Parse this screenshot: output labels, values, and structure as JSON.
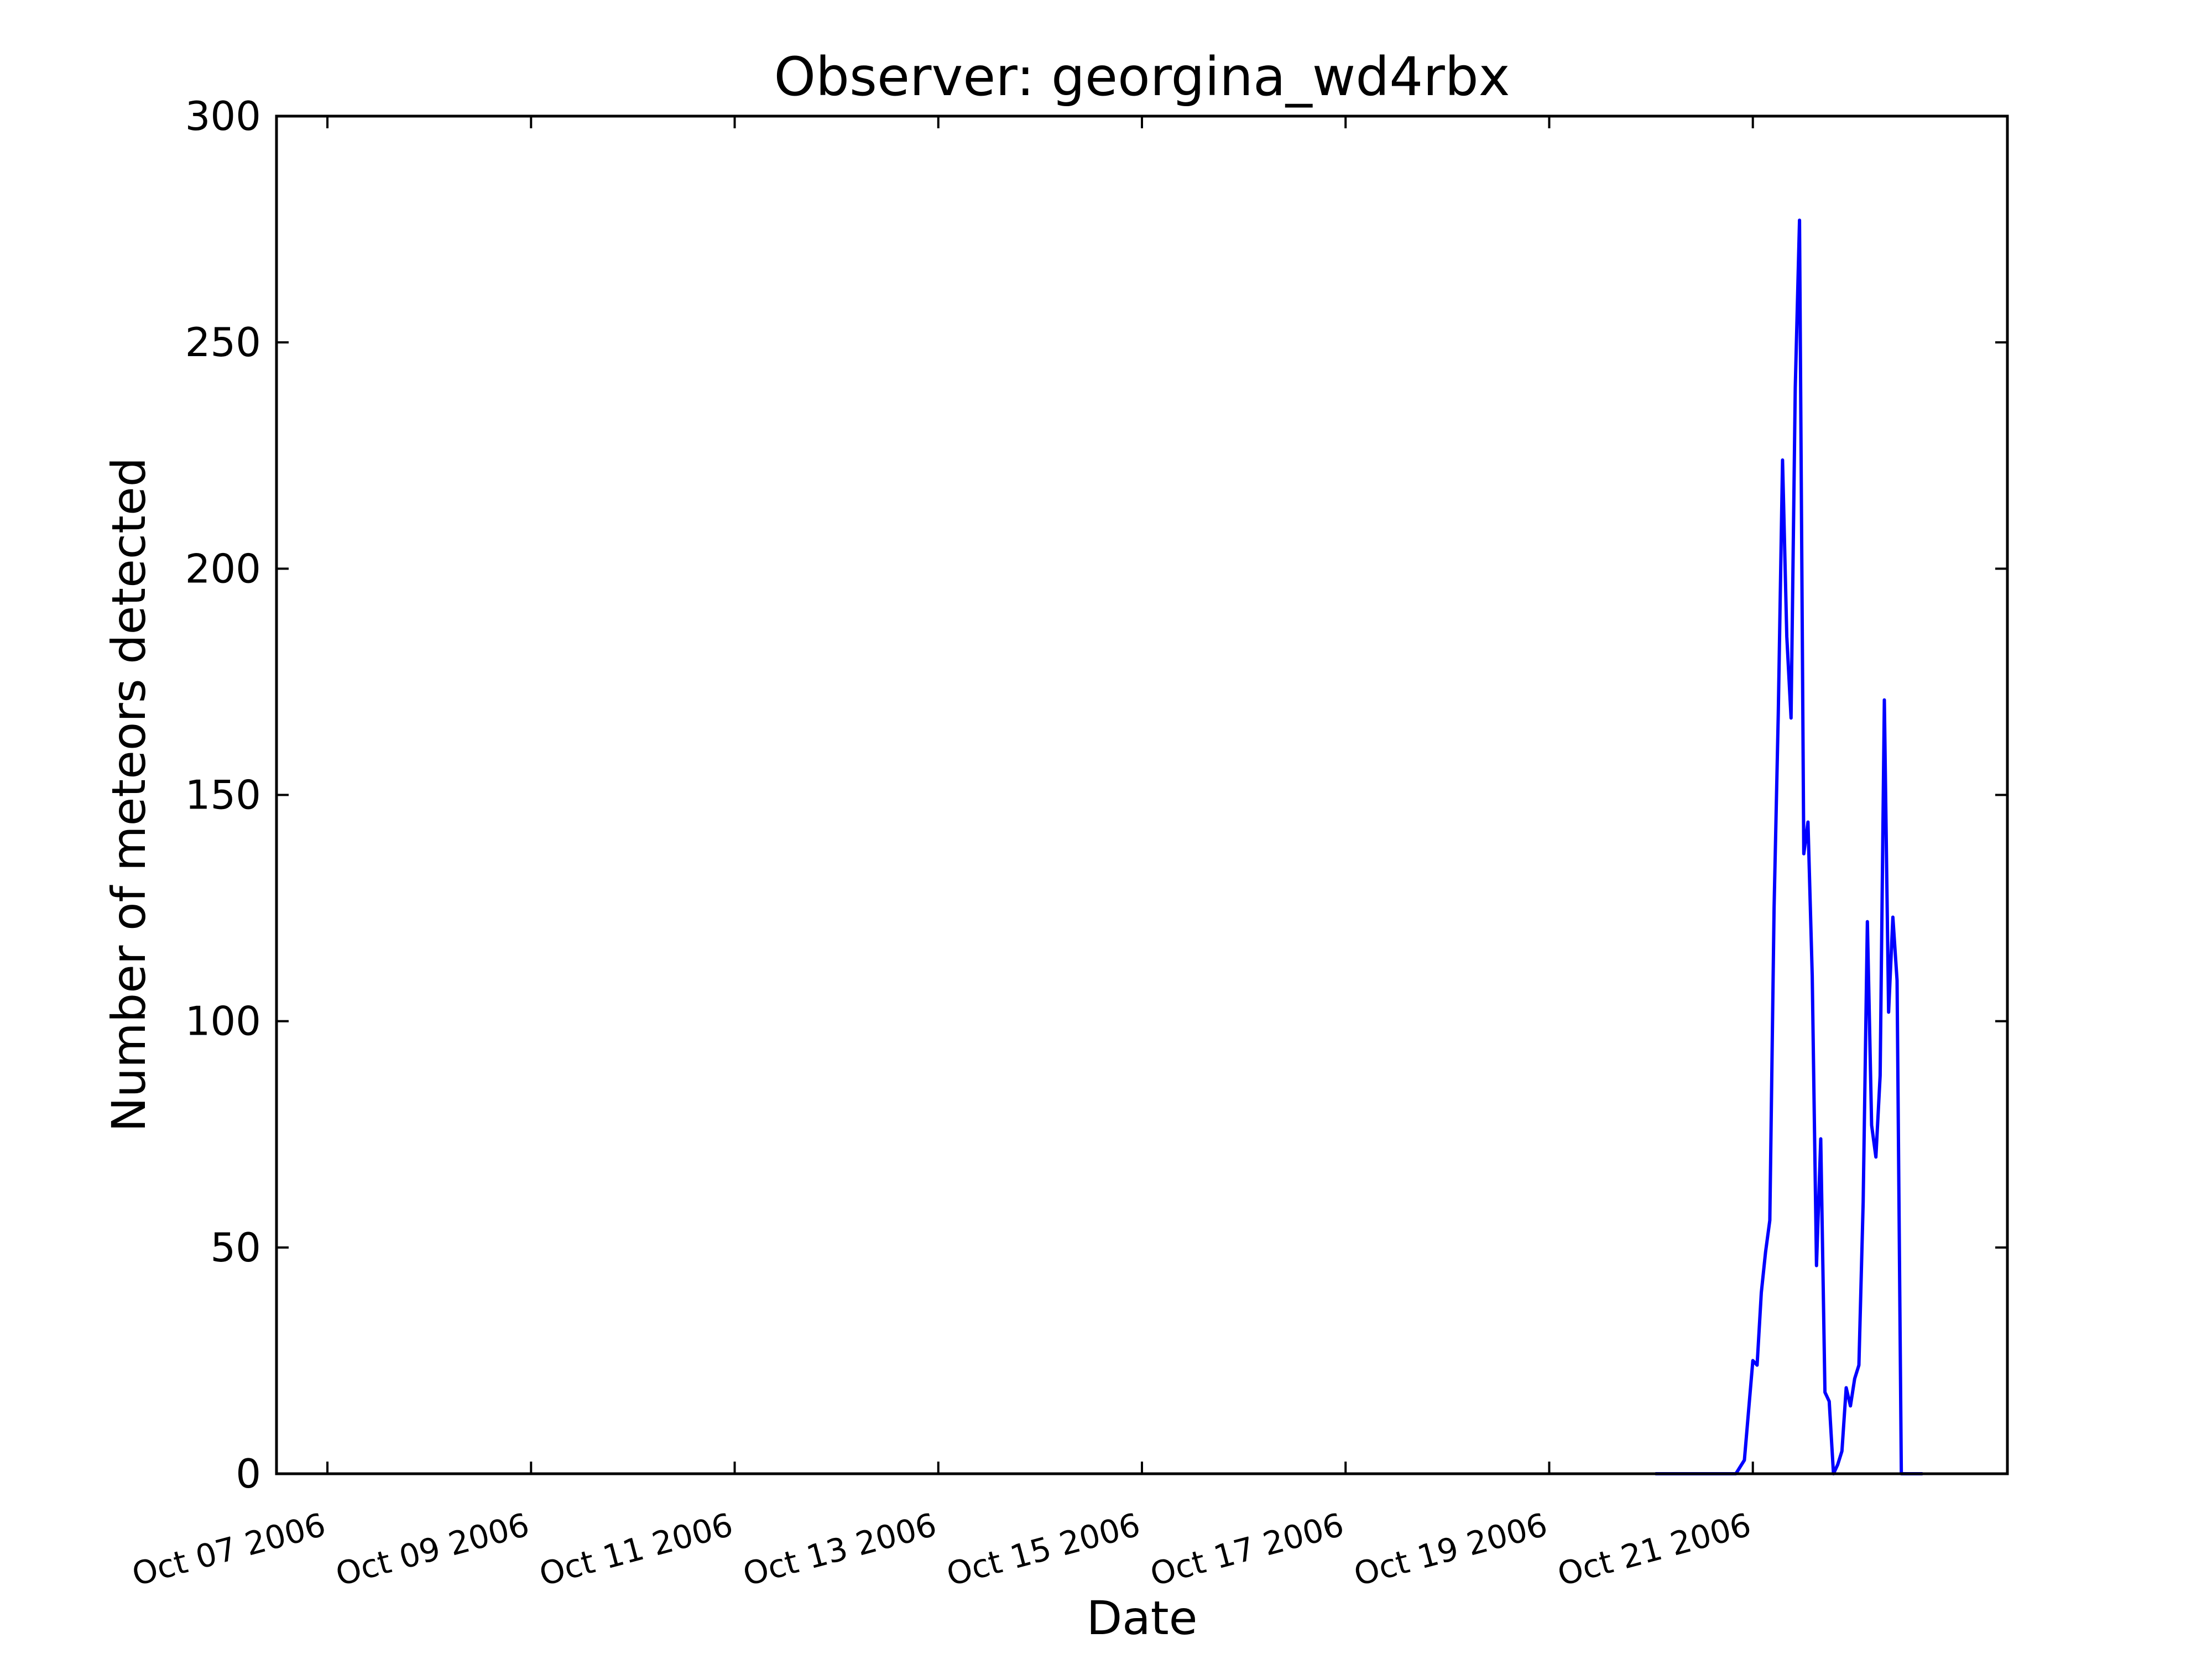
{
  "chart_data": {
    "type": "line",
    "title": "Observer: georgina_wd4rbx",
    "xlabel": "Date",
    "ylabel": "Number of meteors detected",
    "xlim": [
      "2006-10-06T12:00",
      "2006-10-23T12:00"
    ],
    "ylim": [
      0,
      300
    ],
    "yticks": [
      0,
      50,
      100,
      150,
      200,
      250,
      300
    ],
    "xticks": [
      {
        "date": "2006-10-07",
        "label": "Oct 07 2006"
      },
      {
        "date": "2006-10-09",
        "label": "Oct 09 2006"
      },
      {
        "date": "2006-10-11",
        "label": "Oct 11 2006"
      },
      {
        "date": "2006-10-13",
        "label": "Oct 13 2006"
      },
      {
        "date": "2006-10-15",
        "label": "Oct 15 2006"
      },
      {
        "date": "2006-10-17",
        "label": "Oct 17 2006"
      },
      {
        "date": "2006-10-19",
        "label": "Oct 19 2006"
      },
      {
        "date": "2006-10-21",
        "label": "Oct 21 2006"
      }
    ],
    "grid": false,
    "legend": "none",
    "series": [
      {
        "color": "#0000ff",
        "x": [
          "2006-10-20T01:00",
          "2006-10-20T12:00",
          "2006-10-20T20:00",
          "2006-10-20T22:00",
          "2006-10-21T00:00",
          "2006-10-21T01:00",
          "2006-10-21T02:00",
          "2006-10-21T03:00",
          "2006-10-21T04:00",
          "2006-10-21T05:00",
          "2006-10-21T06:00",
          "2006-10-21T07:00",
          "2006-10-21T08:00",
          "2006-10-21T09:00",
          "2006-10-21T10:00",
          "2006-10-21T11:00",
          "2006-10-21T12:00",
          "2006-10-21T13:00",
          "2006-10-21T14:00",
          "2006-10-21T15:00",
          "2006-10-21T16:00",
          "2006-10-21T17:00",
          "2006-10-21T18:00",
          "2006-10-21T19:00",
          "2006-10-21T20:00",
          "2006-10-21T21:00",
          "2006-10-21T22:00",
          "2006-10-21T23:00",
          "2006-10-22T00:00",
          "2006-10-22T01:00",
          "2006-10-22T02:00",
          "2006-10-22T03:00",
          "2006-10-22T04:00",
          "2006-10-22T05:00",
          "2006-10-22T06:00",
          "2006-10-22T07:00",
          "2006-10-22T08:00",
          "2006-10-22T09:00",
          "2006-10-22T10:00",
          "2006-10-22T11:00",
          "2006-10-22T12:00",
          "2006-10-22T13:00",
          "2006-10-22T14:00",
          "2006-10-22T15:00",
          "2006-10-22T16:00"
        ],
        "y": [
          0,
          0,
          0,
          3,
          25,
          24,
          40,
          49,
          56,
          125,
          168,
          224,
          185,
          167,
          240,
          277,
          137,
          144,
          110,
          46,
          74,
          18,
          16,
          0,
          2,
          5,
          19,
          15,
          21,
          24,
          60,
          122,
          77,
          70,
          88,
          171,
          102,
          123,
          109,
          0,
          0,
          0,
          0,
          0,
          0
        ]
      }
    ]
  }
}
